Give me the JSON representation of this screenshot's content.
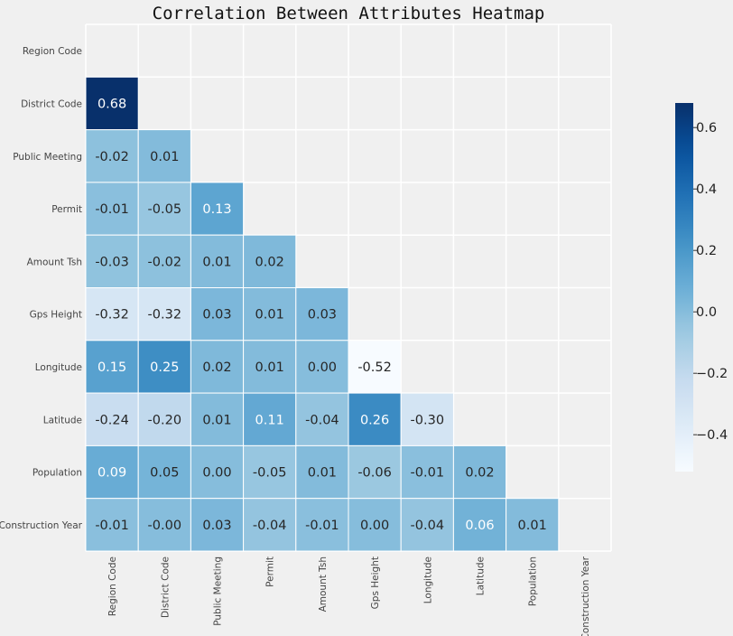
{
  "chart_data": {
    "type": "heatmap",
    "title": "Correlation Between Attributes Heatmap",
    "labels": [
      "Region Code",
      "District Code",
      "Public Meeting",
      "Permit",
      "Amount Tsh",
      "Gps Height",
      "Longitude",
      "Latitude",
      "Population",
      "Construction Year"
    ],
    "mask": "upper-triangle-including-diagonal",
    "values": [
      [],
      [
        0.68
      ],
      [
        -0.02,
        0.01
      ],
      [
        -0.01,
        -0.05,
        0.13
      ],
      [
        -0.03,
        -0.02,
        0.01,
        0.02
      ],
      [
        -0.32,
        -0.32,
        0.03,
        0.01,
        0.03
      ],
      [
        0.15,
        0.25,
        0.02,
        0.01,
        0.0,
        -0.52
      ],
      [
        -0.24,
        -0.2,
        0.01,
        0.11,
        -0.04,
        0.26,
        -0.3
      ],
      [
        0.09,
        0.05,
        0.0,
        -0.05,
        0.01,
        -0.06,
        -0.01,
        0.02
      ],
      [
        -0.01,
        -0.0,
        0.03,
        -0.04,
        -0.01,
        0.0,
        -0.04,
        0.06,
        0.01
      ]
    ],
    "value_format": "2 decimals",
    "colormap": "Blues",
    "colorbar": {
      "range": [
        -0.52,
        0.68
      ],
      "ticks": [
        -0.4,
        -0.2,
        0.0,
        0.2,
        0.4,
        0.6
      ],
      "tick_labels": [
        "−0.4",
        "−0.2",
        "0.0",
        "0.2",
        "0.4",
        "0.6"
      ],
      "placement": "right"
    },
    "grid": false
  }
}
